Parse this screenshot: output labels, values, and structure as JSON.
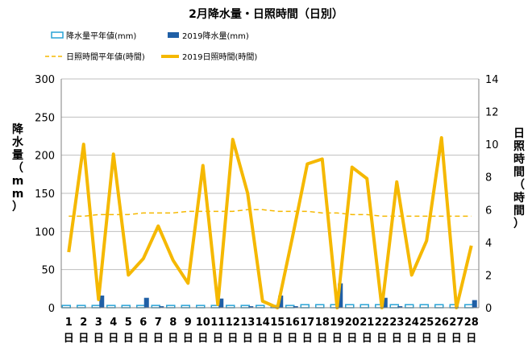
{
  "chart_data": {
    "type": "bar+line",
    "title": "2月降水量・日照時間（日別）",
    "categories": [
      "1",
      "2",
      "3",
      "4",
      "5",
      "6",
      "7",
      "8",
      "9",
      "10",
      "11",
      "12",
      "13",
      "14",
      "15",
      "16",
      "17",
      "18",
      "19",
      "20",
      "21",
      "22",
      "23",
      "24",
      "25",
      "26",
      "27",
      "28"
    ],
    "x_unit": "日",
    "left_axis": {
      "label": "降水量（mm）",
      "ylim": [
        0,
        300
      ],
      "ticks": [
        0,
        50,
        100,
        150,
        200,
        250,
        300
      ]
    },
    "right_axis": {
      "label": "日照時間（時間）",
      "ylim": [
        0,
        14
      ],
      "ticks": [
        0,
        2,
        4,
        6,
        8,
        10,
        12,
        14
      ]
    },
    "grid": true,
    "legend_position": "top",
    "series": [
      {
        "name": "降水量平年値(mm)",
        "type": "bar",
        "axis": "left",
        "color": "#29a3d6",
        "style": "outline",
        "values": [
          3,
          3,
          3,
          3,
          3,
          3,
          3,
          3,
          3,
          3,
          3,
          3,
          3,
          3,
          3,
          3,
          4,
          4,
          4,
          4,
          4,
          4,
          4,
          4,
          4,
          4,
          4,
          4
        ]
      },
      {
        "name": "2019降水量(mm)",
        "type": "bar",
        "axis": "left",
        "color": "#1f5fa6",
        "style": "solid",
        "values": [
          0,
          0,
          16,
          0,
          0,
          13,
          2,
          0,
          0,
          0,
          12,
          0,
          2,
          0,
          16,
          2,
          0,
          0,
          32,
          0,
          0,
          13,
          2,
          0,
          0,
          0,
          0,
          10
        ]
      },
      {
        "name": "日照時間平年値(時間)",
        "type": "line",
        "axis": "right",
        "color": "#f5b800",
        "style": "dashed",
        "values": [
          5.6,
          5.6,
          5.7,
          5.7,
          5.7,
          5.8,
          5.8,
          5.8,
          5.9,
          5.9,
          5.9,
          5.9,
          6.0,
          6.0,
          5.9,
          5.9,
          5.9,
          5.8,
          5.8,
          5.7,
          5.7,
          5.6,
          5.6,
          5.6,
          5.6,
          5.6,
          5.6,
          5.6
        ]
      },
      {
        "name": "2019日照時間(時間)",
        "type": "line",
        "axis": "right",
        "color": "#f5b800",
        "style": "solid",
        "values": [
          3.4,
          10.0,
          0.5,
          9.4,
          2.0,
          3.0,
          5.0,
          2.9,
          1.5,
          8.7,
          0.2,
          10.3,
          7.0,
          0.4,
          0.0,
          4.3,
          8.8,
          9.1,
          0.0,
          8.6,
          7.9,
          0.0,
          7.7,
          2.0,
          4.1,
          10.4,
          0.0,
          3.8
        ]
      }
    ]
  }
}
